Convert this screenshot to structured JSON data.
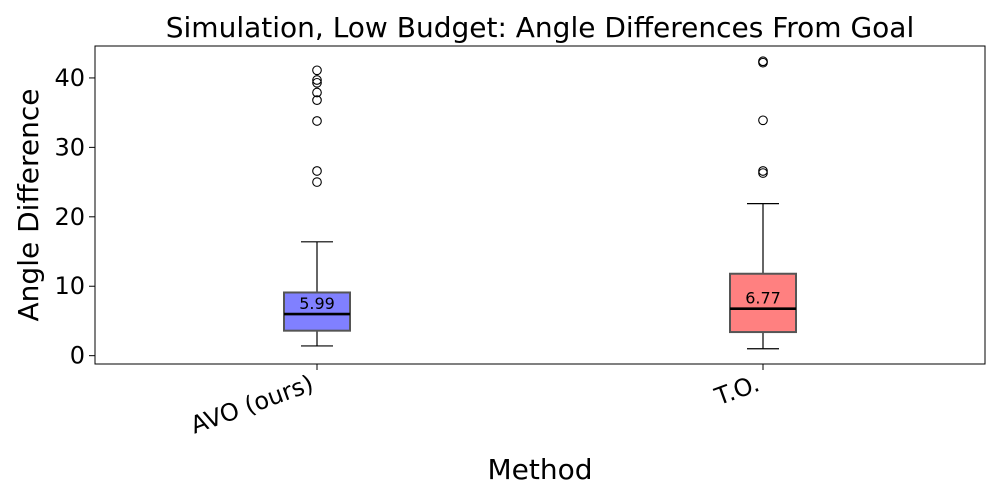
{
  "chart_data": {
    "type": "box",
    "title": "Simulation, Low Budget: Angle Differences From Goal",
    "xlabel": "Method",
    "ylabel": "Angle Difference",
    "ylim": [
      -1.2,
      44.6
    ],
    "yticks": [
      0,
      10,
      20,
      30,
      40
    ],
    "grid": false,
    "legend": "none",
    "categories": [
      "AVO (ours)",
      "T.O."
    ],
    "series": [
      {
        "category": "AVO (ours)",
        "color": "#8080ff",
        "whisker_low": 1.4,
        "q1": 3.6,
        "median": 5.99,
        "q3": 9.1,
        "whisker_high": 16.4,
        "median_label": "5.99",
        "outliers": [
          25.0,
          26.6,
          33.8,
          36.8,
          37.9,
          39.3,
          39.7,
          41.1
        ]
      },
      {
        "category": "T.O.",
        "color": "#ff8080",
        "whisker_low": 1.0,
        "q1": 3.4,
        "median": 6.77,
        "q3": 11.8,
        "whisker_high": 21.9,
        "median_label": "6.77",
        "outliers": [
          26.3,
          26.6,
          33.9,
          42.2,
          42.4
        ]
      }
    ]
  }
}
